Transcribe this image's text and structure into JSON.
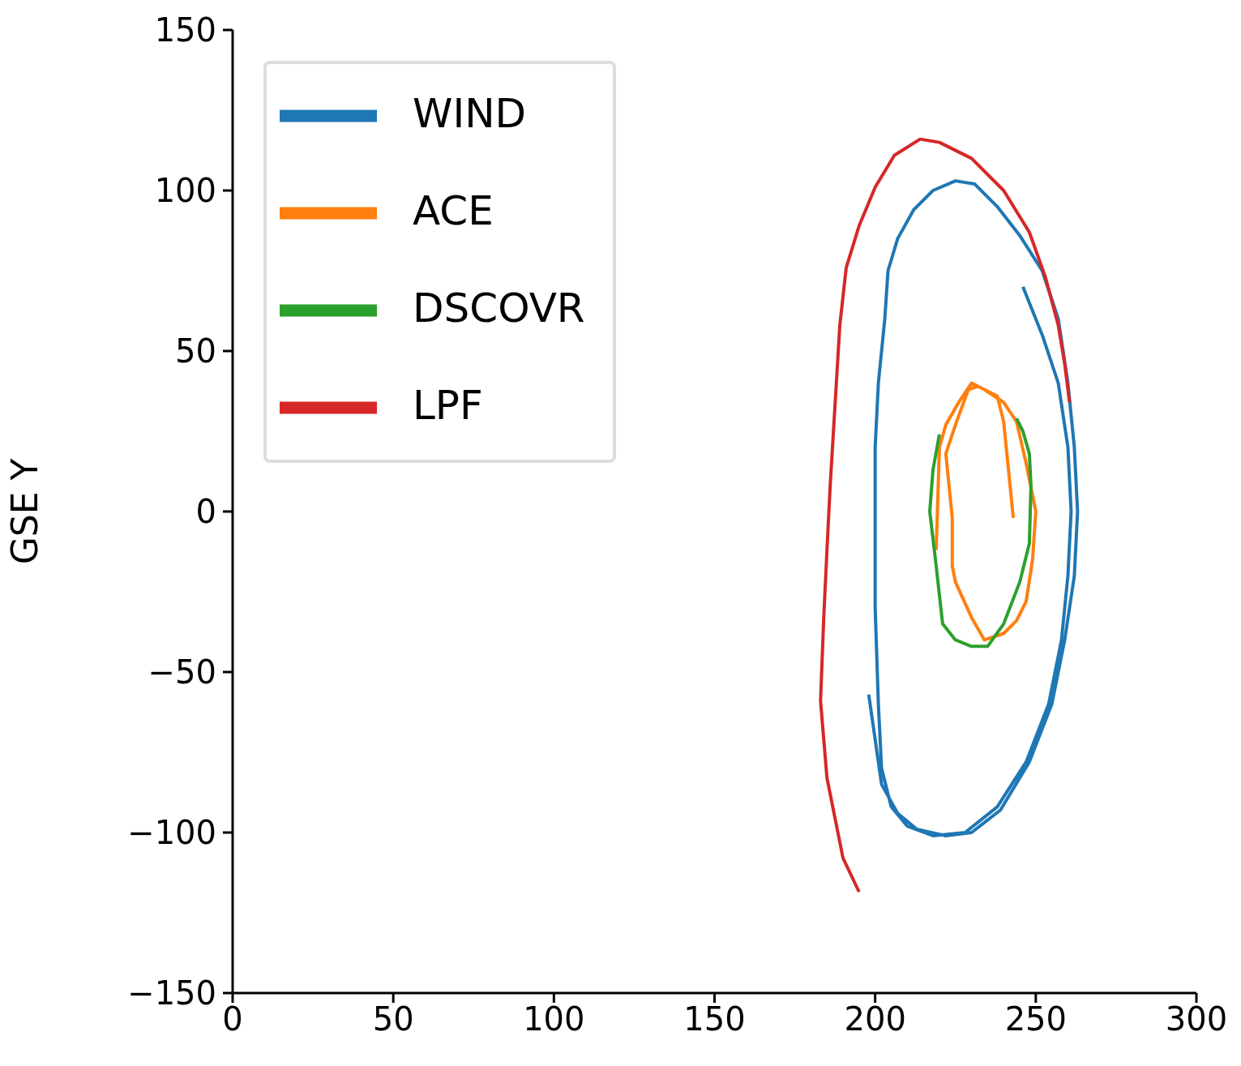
{
  "chart_data": {
    "type": "line",
    "ylabel": "GSE Y",
    "xlim": [
      0,
      300
    ],
    "ylim": [
      -150,
      150
    ],
    "xticks": [
      0,
      50,
      100,
      150,
      200,
      250,
      300
    ],
    "yticks": [
      -150,
      -100,
      -50,
      0,
      50,
      100,
      150
    ],
    "grid": false,
    "legend": "top left",
    "marker": "none",
    "line_style": "solid",
    "series": [
      {
        "name": "WIND",
        "color": "#1f77b4",
        "x": [
          246,
          252,
          257,
          260,
          261,
          260,
          258,
          254,
          247,
          238,
          228,
          218,
          210,
          205,
          202,
          201,
          200,
          200,
          200,
          201,
          203,
          204,
          207,
          212,
          218,
          225,
          231,
          238,
          245,
          252,
          257,
          260,
          262,
          263,
          262,
          259,
          255,
          248,
          239,
          230,
          222,
          213,
          207,
          202,
          198
        ],
        "values": [
          70,
          55,
          40,
          20,
          0,
          -20,
          -40,
          -60,
          -78,
          -92,
          -100,
          -101,
          -98,
          -92,
          -80,
          -60,
          -30,
          0,
          20,
          40,
          60,
          75,
          85,
          94,
          100,
          103,
          102,
          95,
          86,
          75,
          60,
          40,
          20,
          0,
          -20,
          -40,
          -60,
          -78,
          -93,
          -100,
          -101,
          -99,
          -94,
          -85,
          -57
        ]
      },
      {
        "name": "ACE",
        "color": "#ff7f0e",
        "x": [
          219,
          220,
          222,
          226,
          230,
          234,
          240,
          244,
          247,
          250,
          249,
          247,
          244,
          240,
          234,
          230,
          225,
          224,
          224,
          222,
          225,
          229,
          232,
          238,
          240,
          241,
          242,
          243
        ],
        "values": [
          -12,
          20,
          27,
          34,
          40,
          38,
          34,
          28,
          15,
          0,
          -15,
          -28,
          -34,
          -38,
          -40,
          -33,
          -22,
          -17,
          -2,
          18,
          27,
          38,
          39,
          36,
          28,
          18,
          8,
          -2
        ]
      },
      {
        "name": "DSCOVR",
        "color": "#2ca02c",
        "x": [
          220,
          218,
          217,
          219,
          221,
          225,
          230,
          235,
          240,
          245,
          248,
          248.5,
          248,
          246,
          244
        ],
        "values": [
          24,
          13,
          0,
          -17,
          -35,
          -40,
          -42,
          -42,
          -35,
          -22,
          -10,
          8,
          18,
          25,
          29
        ]
      },
      {
        "name": "LPF",
        "color": "#d62728",
        "x": [
          195,
          190,
          185,
          183,
          184,
          185,
          186,
          187.5,
          189,
          191,
          195,
          200,
          206,
          214,
          220,
          230,
          240,
          248,
          253,
          257,
          259,
          260.5
        ],
        "values": [
          -118.5,
          -108,
          -83,
          -59,
          -33,
          -12,
          8,
          33,
          58,
          76,
          89,
          101,
          111,
          116,
          115,
          110,
          100,
          87,
          73,
          58,
          46,
          34
        ]
      }
    ]
  }
}
